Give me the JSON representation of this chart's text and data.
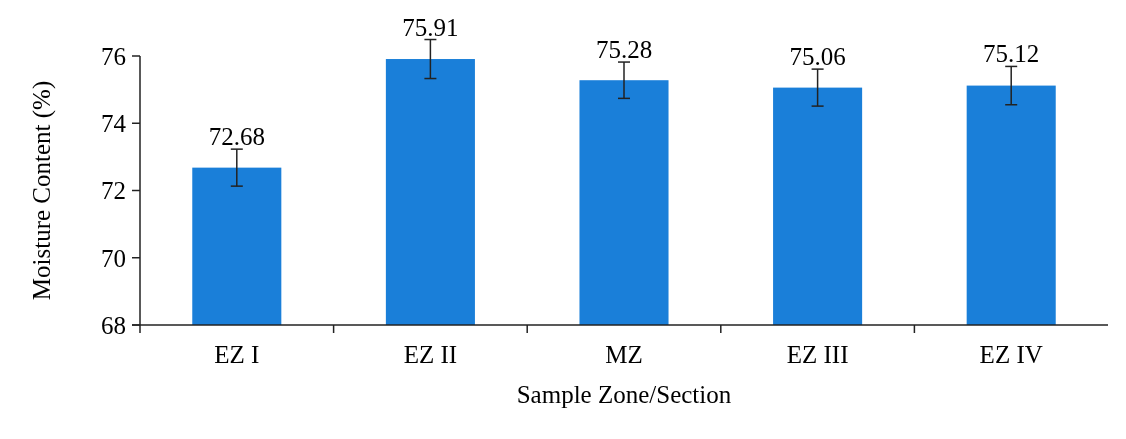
{
  "chart_data": {
    "type": "bar",
    "xlabel": "Sample Zone/Section",
    "ylabel": "Moisture Content (%)",
    "categories": [
      "EZ I",
      "EZ II",
      "MZ",
      "EZ III",
      "EZ IV"
    ],
    "values": [
      72.68,
      75.91,
      75.28,
      75.06,
      75.12
    ],
    "errors": [
      0.55,
      0.58,
      0.54,
      0.55,
      0.57
    ],
    "color": "#1a7fd9",
    "ylim": [
      68,
      76
    ],
    "yticks": [
      68,
      70,
      72,
      74,
      76
    ],
    "data_labels": true
  }
}
